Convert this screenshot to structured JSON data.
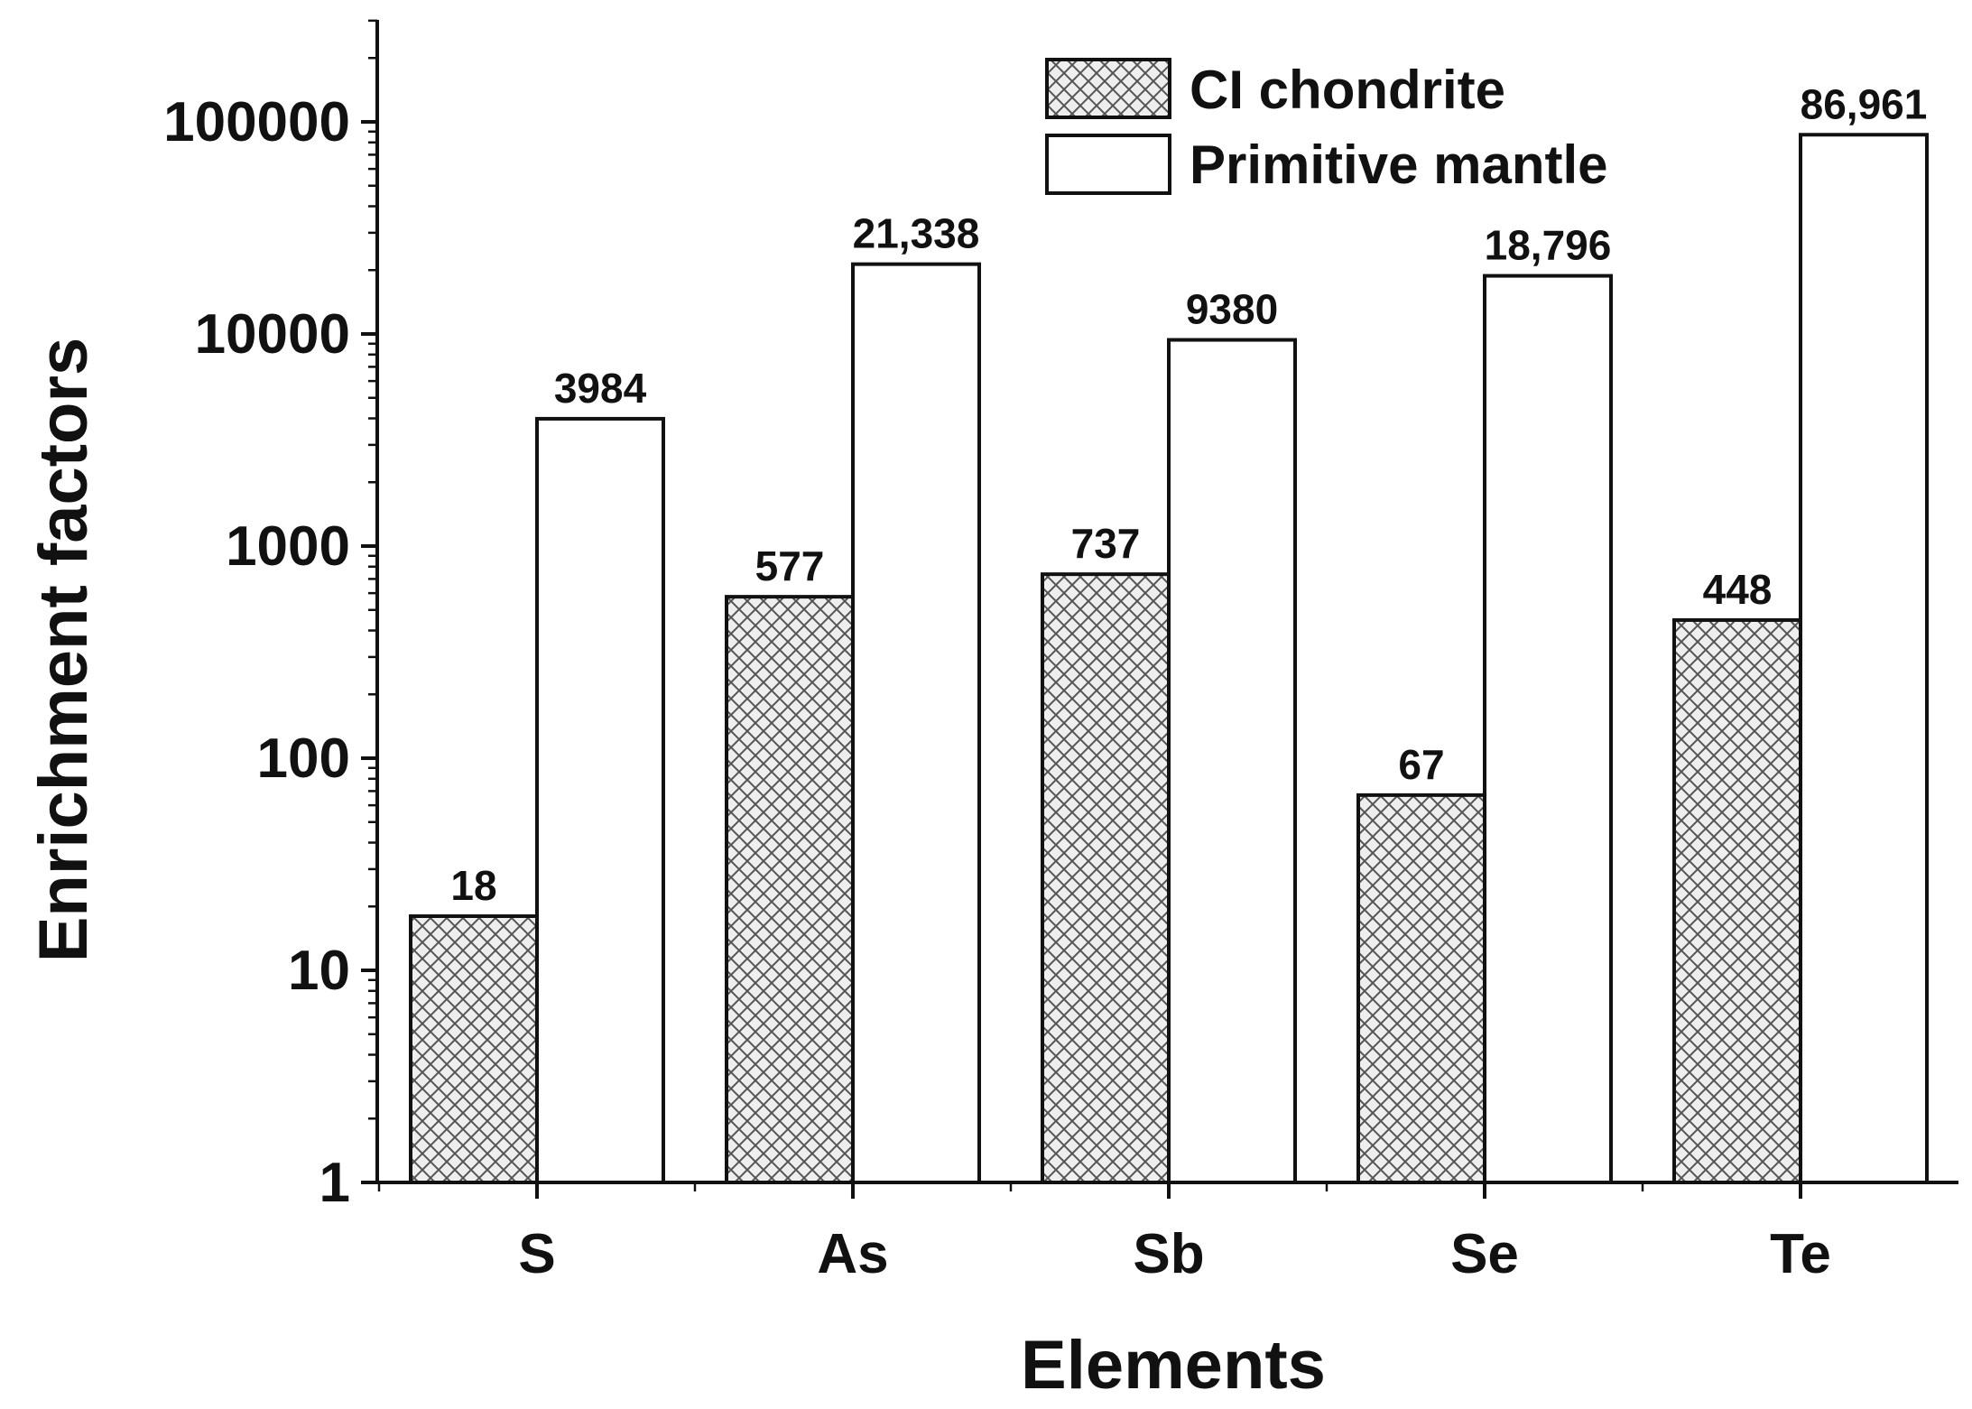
{
  "chart_data": {
    "type": "bar",
    "title": "",
    "xlabel": "Elements",
    "ylabel": "Enrichment factors",
    "yscale": "log",
    "ylim": [
      1,
      300000
    ],
    "yticks": [
      {
        "value": 1,
        "label": "1"
      },
      {
        "value": 10,
        "label": "10"
      },
      {
        "value": 100,
        "label": "100"
      },
      {
        "value": 1000,
        "label": "1000"
      },
      {
        "value": 10000,
        "label": "10000"
      },
      {
        "value": 100000,
        "label": "100000"
      }
    ],
    "categories": [
      "S",
      "As",
      "Sb",
      "Se",
      "Te"
    ],
    "series": [
      {
        "name": "CI chondrite",
        "fill": "crosshatch",
        "values": [
          18,
          577,
          737,
          67,
          448
        ],
        "value_labels": [
          "18",
          "577",
          "737",
          "67",
          "448"
        ]
      },
      {
        "name": "Primitive mantle",
        "fill": "white",
        "values": [
          3984,
          21338,
          9380,
          18796,
          86961
        ],
        "value_labels": [
          "3984",
          "21,338",
          "9380",
          "18,796",
          "86,961"
        ]
      }
    ],
    "legend_position": "top-right",
    "grid": false,
    "colors": {
      "ink": "#111111",
      "hatch": "#555555",
      "hatch_bg": "#eeeeee",
      "background": "#ffffff"
    }
  }
}
